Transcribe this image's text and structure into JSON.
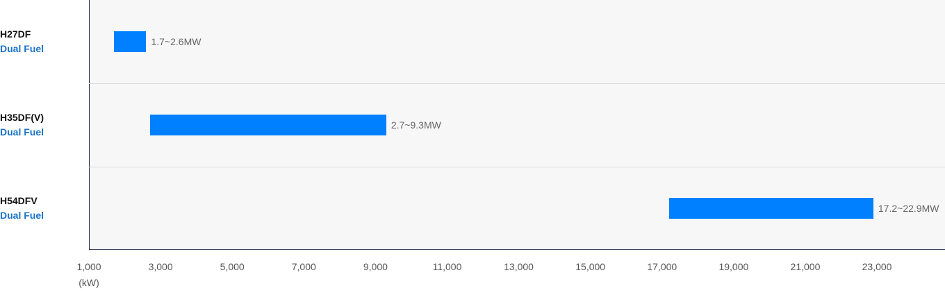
{
  "chart_data": {
    "type": "bar",
    "orientation": "horizontal-range",
    "categories": [
      {
        "model": "H27DF",
        "fuel": "Dual Fuel"
      },
      {
        "model": "H35DF(V)",
        "fuel": "Dual Fuel"
      },
      {
        "model": "H54DFV",
        "fuel": "Dual Fuel"
      }
    ],
    "ranges": [
      {
        "start": 1700,
        "end": 2600,
        "label": "1.7~2.6MW"
      },
      {
        "start": 2700,
        "end": 9300,
        "label": "2.7~9.3MW"
      },
      {
        "start": 17200,
        "end": 22900,
        "label": "17.2~22.9MW"
      }
    ],
    "x_ticks": [
      1000,
      3000,
      5000,
      7000,
      9000,
      11000,
      13000,
      15000,
      17000,
      19000,
      21000,
      23000
    ],
    "x_tick_labels": [
      "1,000",
      "3,000",
      "5,000",
      "7,000",
      "9,000",
      "11,000",
      "13,000",
      "15,000",
      "17,000",
      "19,000",
      "21,000",
      "23,000"
    ],
    "x_unit": "(kW)",
    "xlim": [
      1000,
      24900
    ],
    "bar_color": "#0080ff",
    "fuel_color": "#1a73c8",
    "grid": false
  }
}
